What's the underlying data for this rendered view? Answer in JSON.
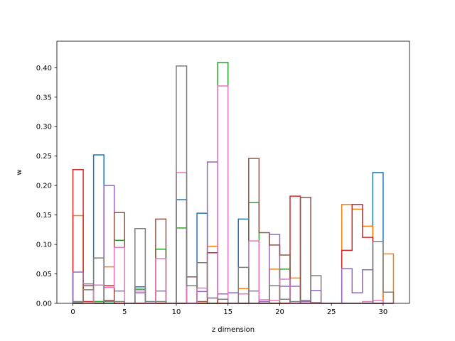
{
  "chart_data": {
    "type": "step-histogram",
    "xlabel": "z dimension",
    "ylabel": "w",
    "xlim": [
      -1.55,
      32.55
    ],
    "ylim": [
      0,
      0.445
    ],
    "xticks": [
      0,
      5,
      10,
      15,
      20,
      25,
      30
    ],
    "yticks": [
      0.0,
      0.05,
      0.1,
      0.15,
      0.2,
      0.25,
      0.3,
      0.35,
      0.4
    ],
    "ytick_labels": [
      "0.00",
      "0.05",
      "0.10",
      "0.15",
      "0.20",
      "0.25",
      "0.30",
      "0.35",
      "0.40"
    ],
    "grid": false,
    "bin_width": 1,
    "bin_starts": [
      0,
      1,
      2,
      3,
      4,
      5,
      6,
      7,
      8,
      9,
      10,
      11,
      12,
      13,
      14,
      15,
      16,
      17,
      18,
      19,
      20,
      21,
      22,
      23,
      24,
      25,
      26,
      27,
      28,
      29,
      30
    ],
    "series": [
      {
        "color": "#1f77b4",
        "values": [
          0,
          0,
          0.252,
          0,
          0,
          0,
          0.028,
          0,
          0,
          0,
          0.176,
          0,
          0.153,
          0,
          0.016,
          0,
          0.143,
          0,
          0,
          0,
          0,
          0,
          0,
          0.001,
          0,
          0,
          0,
          0,
          0,
          0.222,
          0
        ]
      },
      {
        "color": "#ff7f0e",
        "values": [
          0.149,
          0,
          0.003,
          0.062,
          0,
          0,
          0,
          0,
          0,
          0,
          0,
          0,
          0,
          0.097,
          0,
          0,
          0.025,
          0,
          0,
          0.058,
          0,
          0.043,
          0,
          0,
          0,
          0,
          0.168,
          0.16,
          0.131,
          0,
          0.084
        ]
      },
      {
        "color": "#2ca02c",
        "values": [
          0,
          0,
          0.003,
          0,
          0.107,
          0,
          0.024,
          0,
          0.092,
          0,
          0.128,
          0,
          0,
          0,
          0.409,
          0,
          0,
          0.171,
          0,
          0,
          0.058,
          0,
          0,
          0,
          0,
          0,
          0,
          0,
          0,
          0,
          0
        ]
      },
      {
        "color": "#d62728",
        "values": [
          0.227,
          0.003,
          0,
          0.03,
          0,
          0,
          0,
          0,
          0,
          0,
          0,
          0,
          0,
          0.086,
          0,
          0,
          0,
          0,
          0,
          0,
          0,
          0.182,
          0,
          0,
          0,
          0,
          0.09,
          0.168,
          0.112,
          0,
          0
        ]
      },
      {
        "color": "#9467bd",
        "values": [
          0.053,
          0.033,
          0,
          0.2,
          0.021,
          0,
          0.018,
          0,
          0.021,
          0,
          0,
          0,
          0.02,
          0.24,
          0.016,
          0.018,
          0,
          0.021,
          0.003,
          0.117,
          0.029,
          0.029,
          0.003,
          0.022,
          0,
          0,
          0.059,
          0.018,
          0.057,
          0,
          0
        ]
      },
      {
        "color": "#8c564b",
        "values": [
          0,
          0.03,
          0,
          0.005,
          0.154,
          0,
          0,
          0,
          0.143,
          0,
          0,
          0.045,
          0.003,
          0,
          0,
          0,
          0,
          0.246,
          0.12,
          0.099,
          0.082,
          0,
          0.18,
          0,
          0,
          0,
          0,
          0,
          0,
          0,
          0
        ]
      },
      {
        "color": "#e377c2",
        "values": [
          0.002,
          0,
          0.031,
          0.027,
          0.095,
          0,
          0.021,
          0,
          0.076,
          0,
          0.222,
          0,
          0.026,
          0.009,
          0.369,
          0,
          0.016,
          0.106,
          0.006,
          0.005,
          0.041,
          0,
          0,
          0,
          0,
          0,
          0,
          0,
          0.003,
          0.005,
          0
        ]
      },
      {
        "color": "#7f7f7f",
        "values": [
          0.003,
          0.023,
          0.077,
          0.003,
          0.003,
          0,
          0.127,
          0.003,
          0.003,
          0,
          0.403,
          0.03,
          0.069,
          0.009,
          0.007,
          0,
          0.061,
          0,
          0,
          0.03,
          0.007,
          0.003,
          0.005,
          0.047,
          0,
          0,
          0,
          0,
          0,
          0.105,
          0.019
        ]
      }
    ]
  }
}
